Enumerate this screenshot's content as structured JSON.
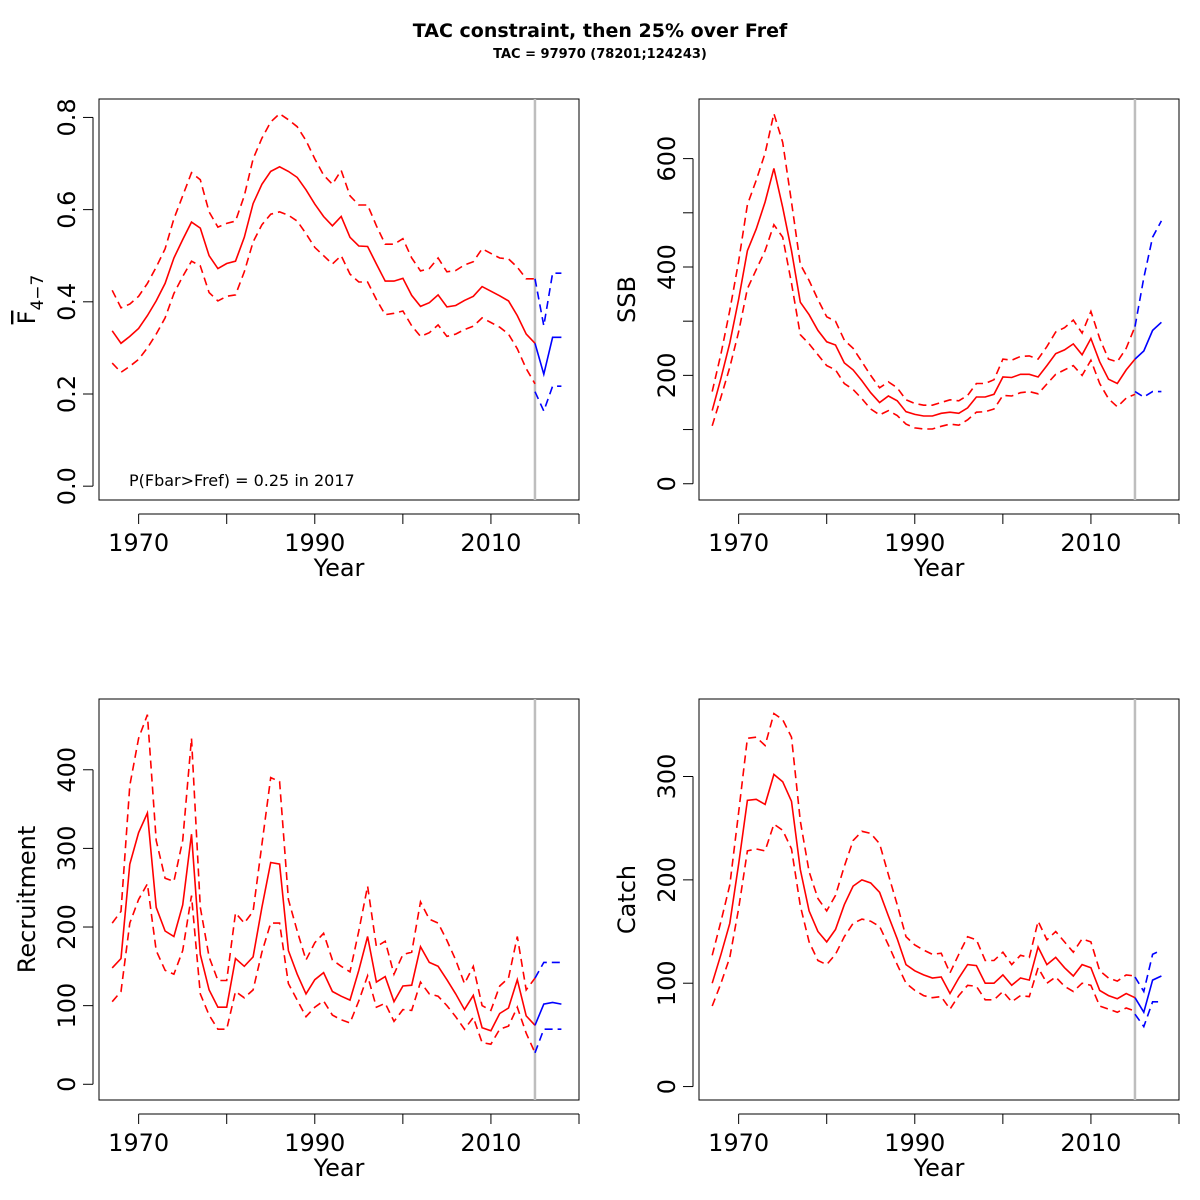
{
  "title": "TAC constraint, then 25% over Fref",
  "subtitle": "TAC = 97970 (78201;124243)",
  "colors": {
    "historic": "#ff0000",
    "projection": "#0000ff",
    "divider": "#bebebe"
  },
  "chart_data": [
    {
      "type": "line",
      "id": "fbar",
      "xlabel": "Year",
      "ylabel_main": "F",
      "ylabel_sub": "4−7",
      "xlim": [
        1965.5,
        2020
      ],
      "ylim": [
        -0.03,
        0.84
      ],
      "xticks": [
        1970,
        1980,
        1990,
        2000,
        2010,
        2020
      ],
      "xtick_labels": [
        "1970",
        "",
        "1990",
        "",
        "2010",
        ""
      ],
      "yticks": [
        0,
        0.2,
        0.4,
        0.6,
        0.8
      ],
      "ytick_labels": [
        "0.0",
        "0.2",
        "0.4",
        "0.6",
        "0.8"
      ],
      "divider_x": 2015,
      "annotation": "P(Fbar>Fref) = 0.25  in 2017",
      "historic": {
        "x": [
          1967,
          1968,
          1969,
          1970,
          1971,
          1972,
          1973,
          1974,
          1975,
          1976,
          1977,
          1978,
          1979,
          1980,
          1981,
          1982,
          1983,
          1984,
          1985,
          1986,
          1987,
          1988,
          1989,
          1990,
          1991,
          1992,
          1993,
          1994,
          1995,
          1996,
          1997,
          1998,
          1999,
          2000,
          2001,
          2002,
          2003,
          2004,
          2005,
          2006,
          2007,
          2008,
          2009,
          2010,
          2011,
          2012,
          2013,
          2014,
          2015
        ],
        "mid": [
          0.337,
          0.31,
          0.325,
          0.342,
          0.37,
          0.402,
          0.44,
          0.495,
          0.535,
          0.573,
          0.56,
          0.5,
          0.472,
          0.483,
          0.488,
          0.54,
          0.613,
          0.655,
          0.683,
          0.693,
          0.683,
          0.67,
          0.643,
          0.612,
          0.585,
          0.565,
          0.585,
          0.54,
          0.521,
          0.52,
          0.482,
          0.445,
          0.445,
          0.451,
          0.414,
          0.39,
          0.398,
          0.415,
          0.389,
          0.392,
          0.403,
          0.412,
          0.433,
          0.423,
          0.413,
          0.402,
          0.37,
          0.33,
          0.31
        ],
        "lo": [
          0.267,
          0.247,
          0.26,
          0.275,
          0.3,
          0.33,
          0.365,
          0.418,
          0.455,
          0.488,
          0.478,
          0.42,
          0.402,
          0.412,
          0.415,
          0.465,
          0.53,
          0.567,
          0.59,
          0.595,
          0.588,
          0.575,
          0.548,
          0.518,
          0.5,
          0.482,
          0.5,
          0.46,
          0.443,
          0.443,
          0.405,
          0.372,
          0.375,
          0.38,
          0.348,
          0.325,
          0.333,
          0.35,
          0.325,
          0.33,
          0.34,
          0.347,
          0.365,
          0.355,
          0.345,
          0.33,
          0.298,
          0.255,
          0.222
        ],
        "hi": [
          0.425,
          0.387,
          0.395,
          0.412,
          0.44,
          0.475,
          0.515,
          0.58,
          0.63,
          0.68,
          0.665,
          0.595,
          0.562,
          0.57,
          0.575,
          0.63,
          0.71,
          0.755,
          0.79,
          0.808,
          0.795,
          0.78,
          0.75,
          0.71,
          0.675,
          0.655,
          0.685,
          0.63,
          0.61,
          0.61,
          0.565,
          0.525,
          0.525,
          0.537,
          0.495,
          0.467,
          0.472,
          0.495,
          0.465,
          0.468,
          0.48,
          0.487,
          0.515,
          0.505,
          0.495,
          0.493,
          0.475,
          0.45,
          0.45
        ]
      },
      "projection": {
        "x": [
          2015,
          2016,
          2017,
          2018
        ],
        "mid": [
          0.31,
          0.243,
          0.323,
          0.323
        ],
        "lo": [
          0.205,
          0.163,
          0.217,
          0.217
        ],
        "hi": [
          0.45,
          0.348,
          0.462,
          0.462
        ]
      }
    },
    {
      "type": "line",
      "id": "ssb",
      "xlabel": "Year",
      "ylabel_main": "SSB",
      "ylabel_sub": "",
      "xlim": [
        1965.5,
        2020
      ],
      "ylim": [
        -30,
        710
      ],
      "xticks": [
        1970,
        1980,
        1990,
        2000,
        2010,
        2020
      ],
      "xtick_labels": [
        "1970",
        "",
        "1990",
        "",
        "2010",
        ""
      ],
      "yticks": [
        0,
        100,
        200,
        300,
        400,
        500,
        600
      ],
      "ytick_labels": [
        "0",
        "",
        "200",
        "",
        "400",
        "",
        "600"
      ],
      "divider_x": 2015,
      "annotation": "",
      "historic": {
        "x": [
          1967,
          1968,
          1969,
          1970,
          1971,
          1972,
          1973,
          1974,
          1975,
          1976,
          1977,
          1978,
          1979,
          1980,
          1981,
          1982,
          1983,
          1984,
          1985,
          1986,
          1987,
          1988,
          1989,
          1990,
          1991,
          1992,
          1993,
          1994,
          1995,
          1996,
          1997,
          1998,
          1999,
          2000,
          2001,
          2002,
          2003,
          2004,
          2005,
          2006,
          2007,
          2008,
          2009,
          2010,
          2011,
          2012,
          2013,
          2014,
          2015
        ],
        "mid": [
          135,
          195,
          260,
          340,
          430,
          470,
          520,
          582,
          510,
          430,
          335,
          312,
          283,
          262,
          256,
          223,
          210,
          190,
          168,
          150,
          162,
          153,
          133,
          128,
          125,
          125,
          130,
          132,
          130,
          140,
          160,
          160,
          165,
          197,
          196,
          202,
          202,
          197,
          218,
          240,
          247,
          258,
          238,
          268,
          225,
          193,
          185,
          210,
          230
        ],
        "lo": [
          107,
          160,
          215,
          280,
          360,
          395,
          430,
          478,
          455,
          370,
          275,
          258,
          238,
          218,
          210,
          185,
          174,
          157,
          138,
          127,
          135,
          126,
          110,
          103,
          101,
          101,
          106,
          110,
          108,
          118,
          132,
          133,
          138,
          163,
          162,
          168,
          170,
          166,
          184,
          202,
          210,
          218,
          200,
          228,
          185,
          157,
          142,
          158,
          165
        ],
        "hi": [
          170,
          240,
          320,
          410,
          515,
          560,
          610,
          683,
          630,
          520,
          405,
          375,
          340,
          308,
          300,
          265,
          250,
          225,
          200,
          177,
          188,
          177,
          155,
          148,
          145,
          145,
          150,
          155,
          153,
          163,
          185,
          185,
          192,
          230,
          228,
          235,
          236,
          230,
          253,
          280,
          288,
          302,
          278,
          318,
          268,
          230,
          225,
          250,
          290
        ]
      },
      "projection": {
        "x": [
          2015,
          2016,
          2017,
          2018
        ],
        "mid": [
          230,
          245,
          283,
          298
        ],
        "lo": [
          170,
          160,
          170,
          170
        ],
        "hi": [
          290,
          380,
          455,
          485
        ]
      }
    },
    {
      "type": "line",
      "id": "recruitment",
      "xlabel": "Year",
      "ylabel_main": "Recruitment",
      "ylabel_sub": "",
      "xlim": [
        1965.5,
        2020
      ],
      "ylim": [
        -20,
        490
      ],
      "xticks": [
        1970,
        1980,
        1990,
        2000,
        2010,
        2020
      ],
      "xtick_labels": [
        "1970",
        "",
        "1990",
        "",
        "2010",
        ""
      ],
      "yticks": [
        0,
        100,
        200,
        300,
        400
      ],
      "ytick_labels": [
        "0",
        "100",
        "200",
        "300",
        "400"
      ],
      "divider_x": 2015,
      "annotation": "",
      "historic": {
        "x": [
          1967,
          1968,
          1969,
          1970,
          1971,
          1972,
          1973,
          1974,
          1975,
          1976,
          1977,
          1978,
          1979,
          1980,
          1981,
          1982,
          1983,
          1984,
          1985,
          1986,
          1987,
          1988,
          1989,
          1990,
          1991,
          1992,
          1993,
          1994,
          1995,
          1996,
          1997,
          1998,
          1999,
          2000,
          2001,
          2002,
          2003,
          2004,
          2005,
          2006,
          2007,
          2008,
          2009,
          2010,
          2011,
          2012,
          2013,
          2014,
          2015
        ],
        "mid": [
          148,
          160,
          280,
          320,
          345,
          225,
          195,
          188,
          228,
          318,
          165,
          120,
          98,
          98,
          160,
          150,
          162,
          225,
          282,
          280,
          170,
          140,
          115,
          133,
          142,
          118,
          112,
          107,
          145,
          188,
          130,
          137,
          105,
          125,
          126,
          175,
          155,
          150,
          133,
          115,
          95,
          113,
          72,
          68,
          90,
          97,
          133,
          87,
          75
        ],
        "lo": [
          105,
          118,
          205,
          235,
          255,
          170,
          145,
          140,
          170,
          240,
          115,
          88,
          70,
          70,
          118,
          110,
          120,
          168,
          205,
          205,
          128,
          107,
          86,
          98,
          106,
          88,
          82,
          78,
          106,
          138,
          98,
          103,
          80,
          95,
          94,
          130,
          115,
          112,
          100,
          86,
          70,
          85,
          53,
          51,
          70,
          74,
          98,
          65,
          40
        ],
        "hi": [
          205,
          220,
          380,
          440,
          470,
          310,
          262,
          258,
          310,
          440,
          225,
          162,
          132,
          132,
          218,
          205,
          220,
          305,
          390,
          385,
          235,
          195,
          158,
          180,
          192,
          158,
          150,
          143,
          195,
          252,
          175,
          182,
          140,
          165,
          168,
          232,
          210,
          205,
          183,
          158,
          128,
          150,
          100,
          94,
          125,
          135,
          188,
          120,
          135
        ]
      },
      "projection": {
        "x": [
          2015,
          2016,
          2017,
          2018
        ],
        "mid": [
          75,
          102,
          104,
          102
        ],
        "lo": [
          40,
          70,
          70,
          70
        ],
        "hi": [
          135,
          155,
          155,
          155
        ]
      }
    },
    {
      "type": "line",
      "id": "catch",
      "xlabel": "Year",
      "ylabel_main": "Catch",
      "ylabel_sub": "",
      "xlim": [
        1965.5,
        2020
      ],
      "ylim": [
        -13,
        375
      ],
      "xticks": [
        1970,
        1980,
        1990,
        2000,
        2010,
        2020
      ],
      "xtick_labels": [
        "1970",
        "",
        "1990",
        "",
        "2010",
        ""
      ],
      "yticks": [
        0,
        100,
        200,
        300
      ],
      "ytick_labels": [
        "0",
        "100",
        "200",
        "300"
      ],
      "divider_x": 2015,
      "annotation": "",
      "historic": {
        "x": [
          1967,
          1968,
          1969,
          1970,
          1971,
          1972,
          1973,
          1974,
          1975,
          1976,
          1977,
          1978,
          1979,
          1980,
          1981,
          1982,
          1983,
          1984,
          1985,
          1986,
          1987,
          1988,
          1989,
          1990,
          1991,
          1992,
          1993,
          1994,
          1995,
          1996,
          1997,
          1998,
          1999,
          2000,
          2001,
          2002,
          2003,
          2004,
          2005,
          2006,
          2007,
          2008,
          2009,
          2010,
          2011,
          2012,
          2013,
          2014,
          2015
        ],
        "mid": [
          100,
          128,
          158,
          215,
          277,
          278,
          273,
          302,
          295,
          276,
          210,
          170,
          150,
          140,
          152,
          176,
          194,
          200,
          197,
          188,
          165,
          143,
          118,
          112,
          108,
          105,
          106,
          90,
          105,
          118,
          117,
          100,
          100,
          108,
          98,
          105,
          103,
          135,
          118,
          125,
          115,
          107,
          118,
          115,
          93,
          88,
          85,
          90,
          86
        ],
        "lo": [
          78,
          100,
          125,
          172,
          228,
          230,
          228,
          254,
          248,
          230,
          175,
          140,
          122,
          118,
          128,
          145,
          158,
          162,
          160,
          155,
          137,
          118,
          100,
          93,
          88,
          86,
          87,
          75,
          88,
          98,
          97,
          84,
          84,
          92,
          82,
          88,
          87,
          115,
          100,
          106,
          97,
          92,
          100,
          98,
          78,
          75,
          72,
          76,
          73
        ],
        "hi": [
          127,
          160,
          195,
          265,
          337,
          338,
          330,
          361,
          355,
          338,
          257,
          208,
          182,
          170,
          185,
          213,
          238,
          247,
          245,
          235,
          205,
          176,
          145,
          137,
          132,
          128,
          129,
          110,
          128,
          145,
          142,
          122,
          122,
          130,
          118,
          127,
          125,
          160,
          142,
          150,
          140,
          130,
          143,
          140,
          112,
          105,
          102,
          108,
          107
        ]
      },
      "projection": {
        "x": [
          2015,
          2016,
          2017,
          2018
        ],
        "mid": [
          86,
          72,
          103,
          107
        ],
        "lo": [
          70,
          58,
          82,
          82
        ],
        "hi": [
          106,
          92,
          128,
          132
        ]
      }
    }
  ]
}
